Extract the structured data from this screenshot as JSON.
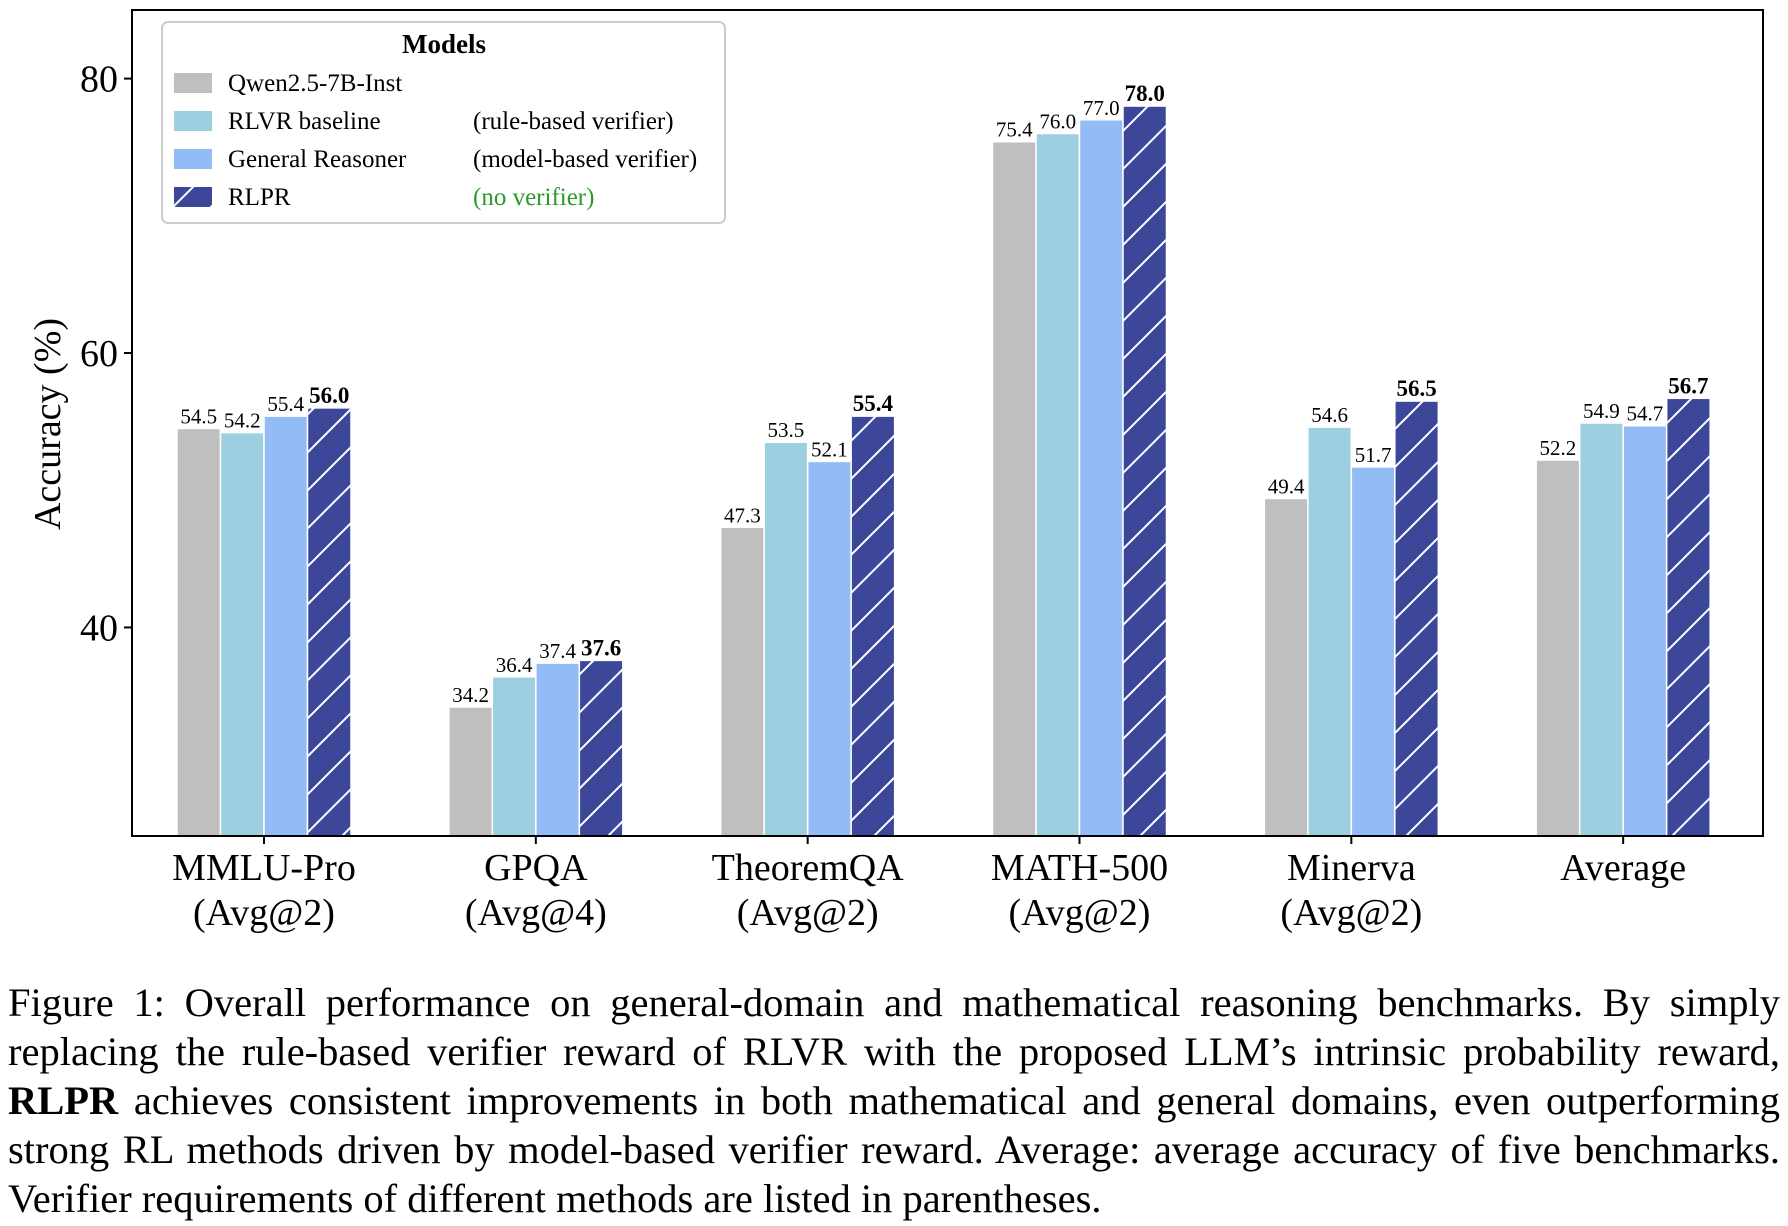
{
  "chart_data": {
    "type": "bar",
    "ylabel": "Accuracy (%)",
    "xlabel": "",
    "title": "",
    "ylim": [
      24.8,
      85
    ],
    "yticks": [
      40,
      60,
      80
    ],
    "grid": false,
    "legend": {
      "title": "Models",
      "placement": "top-left"
    },
    "categories": [
      {
        "name": "MMLU-Pro",
        "metric": "(Avg@2)"
      },
      {
        "name": "GPQA",
        "metric": "(Avg@4)"
      },
      {
        "name": "TheoremQA",
        "metric": "(Avg@2)"
      },
      {
        "name": "MATH-500",
        "metric": "(Avg@2)"
      },
      {
        "name": "Minerva",
        "metric": "(Avg@2)"
      },
      {
        "name": "Average",
        "metric": ""
      }
    ],
    "series": [
      {
        "name": "Qwen2.5-7B-Inst",
        "note": "",
        "color": "#bfbfbf",
        "hatch": false,
        "values": [
          54.5,
          34.2,
          47.3,
          75.4,
          49.4,
          52.2
        ]
      },
      {
        "name": "RLVR baseline",
        "note": "(rule-based verifier)",
        "color": "#9ecfe0",
        "hatch": false,
        "values": [
          54.2,
          36.4,
          53.5,
          76.0,
          54.6,
          54.9
        ]
      },
      {
        "name": "General Reasoner",
        "note": "(model-based verifier)",
        "color": "#93bbf5",
        "hatch": false,
        "values": [
          55.4,
          37.4,
          52.1,
          77.0,
          51.7,
          54.7
        ]
      },
      {
        "name": "RLPR",
        "note": "(no verifier)",
        "color": "#3d479a",
        "hatch": true,
        "note_color": "#2a9a2a",
        "bold_labels": true,
        "values": [
          56.0,
          37.6,
          55.4,
          78.0,
          56.5,
          56.7
        ]
      }
    ]
  },
  "caption": {
    "part1": "Figure 1: Overall performance on general-domain and mathematical reasoning benchmarks. By simply replacing the rule-based verifier reward of RLVR with the proposed LLM’s intrinsic probability reward, ",
    "bold": "RLPR",
    "part2": " achieves consistent improvements in both mathematical and general domains, even outperforming strong RL methods driven by model-based verifier reward. Average: average accuracy of five benchmarks. Verifier requirements of different methods are listed in parentheses."
  }
}
